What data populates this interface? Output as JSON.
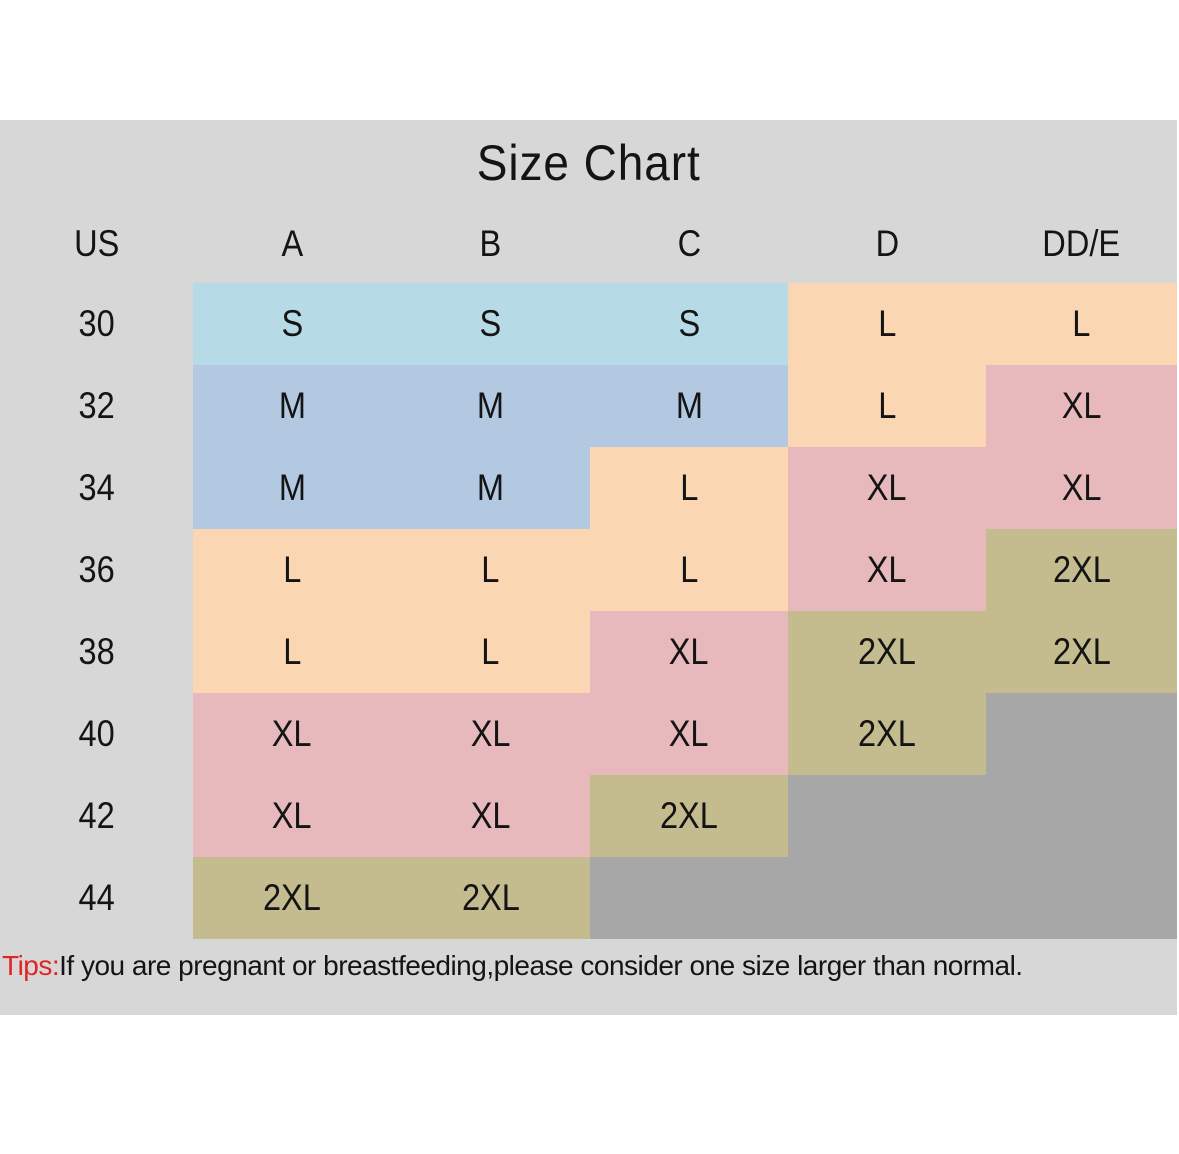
{
  "page": {
    "background": "#ffffff",
    "panel_background": "#d7d7d7",
    "empty_cell_color": "#a7a7a7",
    "text_color": "#141414"
  },
  "chart_data": {
    "type": "table",
    "title": "Size Chart",
    "columns": [
      "US",
      "A",
      "B",
      "C",
      "D",
      "DD/E"
    ],
    "rows": [
      {
        "us": "30",
        "cells": [
          {
            "size": "S",
            "bg": "cyan"
          },
          {
            "size": "S",
            "bg": "cyan"
          },
          {
            "size": "S",
            "bg": "cyan"
          },
          {
            "size": "L",
            "bg": "peach"
          },
          {
            "size": "L",
            "bg": "peach"
          }
        ]
      },
      {
        "us": "32",
        "cells": [
          {
            "size": "M",
            "bg": "blue"
          },
          {
            "size": "M",
            "bg": "blue"
          },
          {
            "size": "M",
            "bg": "blue"
          },
          {
            "size": "L",
            "bg": "peach"
          },
          {
            "size": "XL",
            "bg": "pink"
          }
        ]
      },
      {
        "us": "34",
        "cells": [
          {
            "size": "M",
            "bg": "blue"
          },
          {
            "size": "M",
            "bg": "blue"
          },
          {
            "size": "L",
            "bg": "peach"
          },
          {
            "size": "XL",
            "bg": "pink"
          },
          {
            "size": "XL",
            "bg": "pink"
          }
        ]
      },
      {
        "us": "36",
        "cells": [
          {
            "size": "L",
            "bg": "peach"
          },
          {
            "size": "L",
            "bg": "peach"
          },
          {
            "size": "L",
            "bg": "peach"
          },
          {
            "size": "XL",
            "bg": "pink"
          },
          {
            "size": "2XL",
            "bg": "olive"
          }
        ]
      },
      {
        "us": "38",
        "cells": [
          {
            "size": "L",
            "bg": "peach"
          },
          {
            "size": "L",
            "bg": "peach"
          },
          {
            "size": "XL",
            "bg": "pink"
          },
          {
            "size": "2XL",
            "bg": "olive"
          },
          {
            "size": "2XL",
            "bg": "olive"
          }
        ]
      },
      {
        "us": "40",
        "cells": [
          {
            "size": "XL",
            "bg": "pink"
          },
          {
            "size": "XL",
            "bg": "pink"
          },
          {
            "size": "XL",
            "bg": "pink"
          },
          {
            "size": "2XL",
            "bg": "olive"
          },
          {
            "size": "",
            "bg": "empty"
          }
        ]
      },
      {
        "us": "42",
        "cells": [
          {
            "size": "XL",
            "bg": "pink"
          },
          {
            "size": "XL",
            "bg": "pink"
          },
          {
            "size": "2XL",
            "bg": "olive"
          },
          {
            "size": "",
            "bg": "empty"
          },
          {
            "size": "",
            "bg": "empty"
          }
        ]
      },
      {
        "us": "44",
        "cells": [
          {
            "size": "2XL",
            "bg": "olive"
          },
          {
            "size": "2XL",
            "bg": "olive"
          },
          {
            "size": "",
            "bg": "empty"
          },
          {
            "size": "",
            "bg": "empty"
          },
          {
            "size": "",
            "bg": "empty"
          }
        ]
      }
    ],
    "palette": {
      "cyan": "#b7dbe6",
      "blue": "#b3c9e2",
      "peach": "#fad6b2",
      "pink": "#e7b9bd",
      "olive": "#c4bc8e",
      "empty": "#a7a7a7"
    },
    "grid": false,
    "legend_position": "none"
  },
  "tips": {
    "prefix": "Tips:",
    "prefix_color": "#e32222",
    "text": "If you are pregnant or breastfeeding,please consider one size larger than normal."
  }
}
